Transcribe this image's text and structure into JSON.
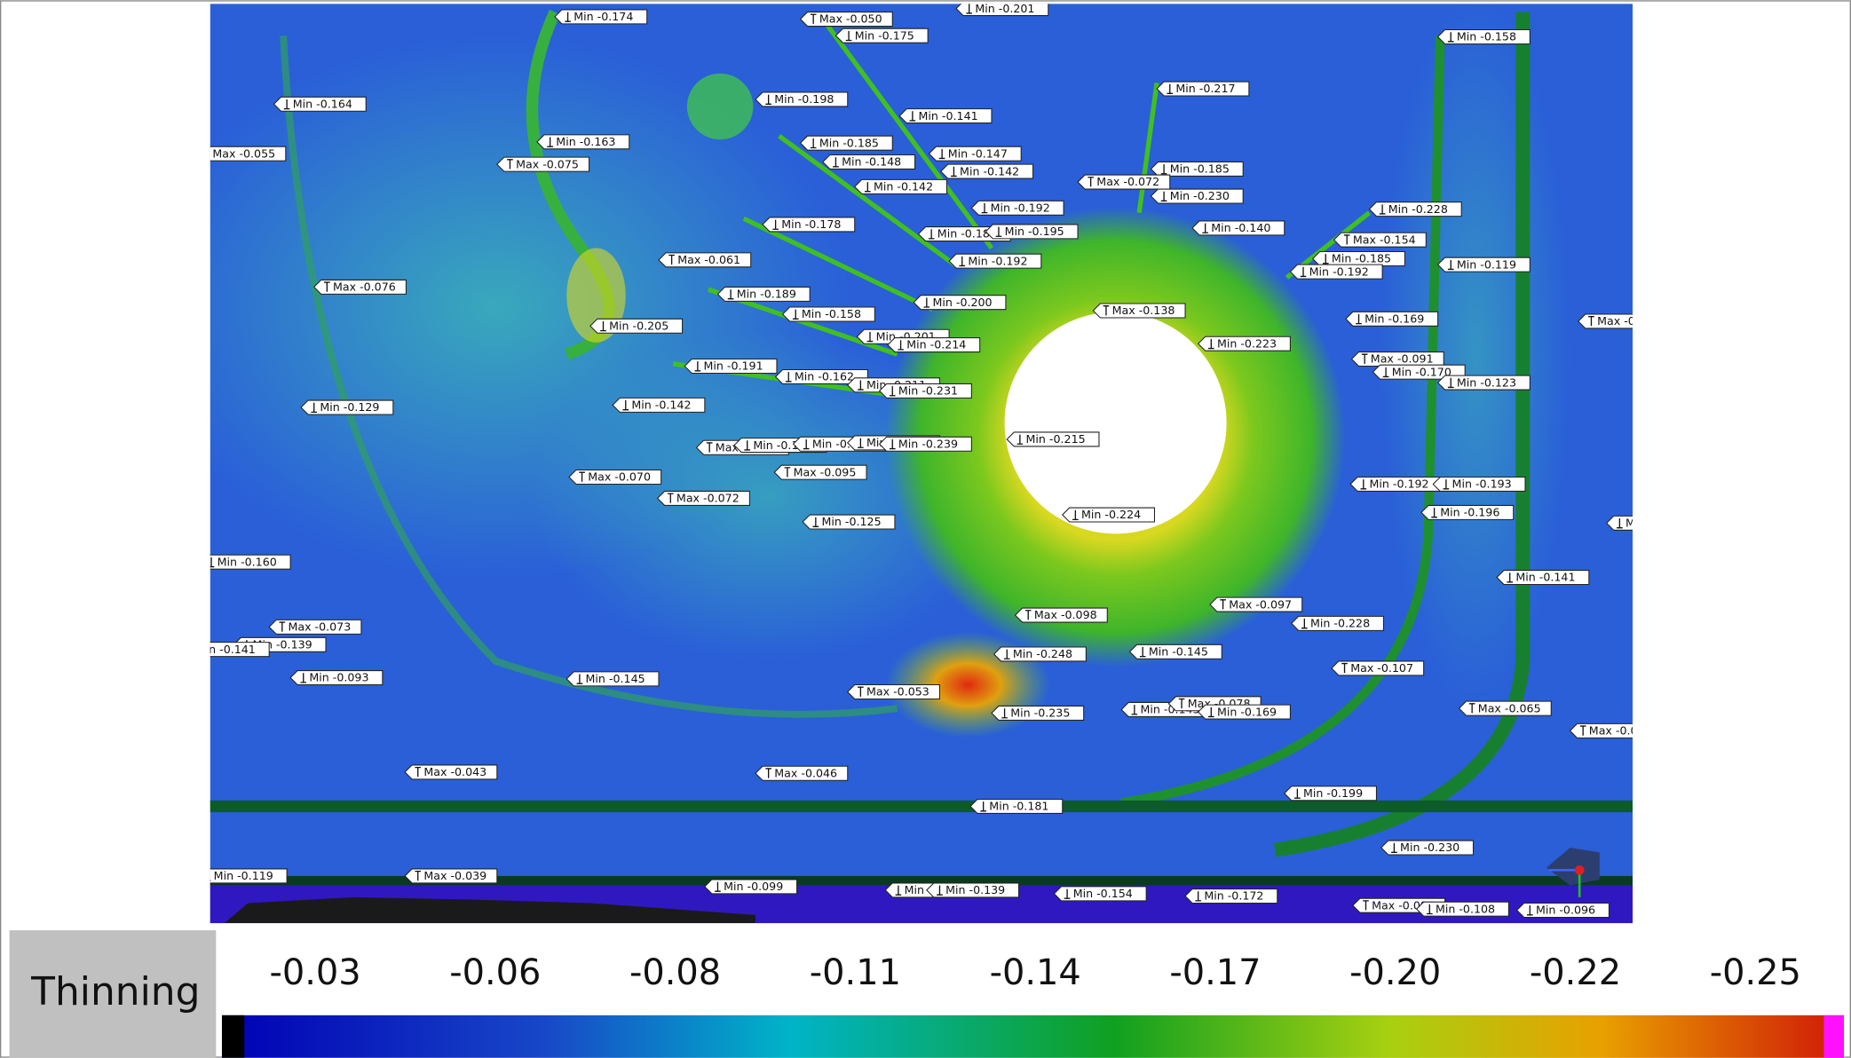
{
  "legend": {
    "title": "Thinning",
    "ticks": [
      "-0.03",
      "-0.06",
      "-0.08",
      "-0.11",
      "-0.14",
      "-0.17",
      "-0.20",
      "-0.22",
      "-0.25"
    ]
  },
  "labels": [
    "Min -0.174",
    "Max -0.050",
    "Min -0.201",
    "Min -0.175",
    "Min -0.158",
    "Min -0.164",
    "Min -0.198",
    "Min -0.217",
    "Min -0.141",
    "Min -0.163",
    "Min -0.185",
    "Max -0.055",
    "Max -0.075",
    "Min -0.148",
    "Min -0.147",
    "Min -0.142",
    "Min -0.185",
    "Max -0.072",
    "Min -0.142",
    "Min -0.230",
    "Min -0.192",
    "Min -0.228",
    "Min -0.178",
    "Min -0.140",
    "Min -0.181",
    "Min -0.195",
    "Max -0.154",
    "Max -0.061",
    "Min -0.192",
    "Min -0.185",
    "Min -0.192",
    "Min -0.119",
    "Max -0.076",
    "Min -0.189",
    "Min -0.200",
    "Max -0.138",
    "Min -0.158",
    "Min -0.169",
    "Max -0.",
    "Min -0.205",
    "Min -0.201",
    "Min -0.214",
    "Min -0.223",
    "Max -0.091",
    "Min -0.191",
    "Min -0.170",
    "Min -0.162",
    "Min -0.211",
    "Min -0.231",
    "Min -0.123",
    "Min -0.129",
    "Min -0.142",
    "Min -0.215",
    "Max -0.097",
    "Min -0.166",
    "Min -0.169",
    "Min -0.211",
    "Min -0.239",
    "Max -0.095",
    "Max -0.070",
    "Max -0.072",
    "Min -0.192",
    "Min -0.193",
    "Min -0.224",
    "Min -0.125",
    "Min -0.196",
    "Mi",
    "Min -0.160",
    "Min -0.141",
    "Max -0.098",
    "Max -0.097",
    "Max -0.073",
    "Min -0.228",
    "Min -0.139",
    "Min -0.141",
    "Max -0.107",
    "Min -0.248",
    "Min -0.145",
    "Min -0.093",
    "Min -0.145",
    "Max -0.053",
    "Max -0.065",
    "Min -0.235",
    "Min -0.145",
    "Max -0.078",
    "Min -0.169",
    "Max -0.04",
    "Max -0.043",
    "Max -0.046",
    "Min -0.199",
    "Min -0.181",
    "Min -0.230",
    "Min -0.119",
    "Max -0.039",
    "Min -0.099",
    "Min -0.139",
    "Min -0.154",
    "Min -0.172",
    "Max -0.094",
    "Min -0.108",
    "Min -0.096",
    "Min -0.139"
  ]
}
